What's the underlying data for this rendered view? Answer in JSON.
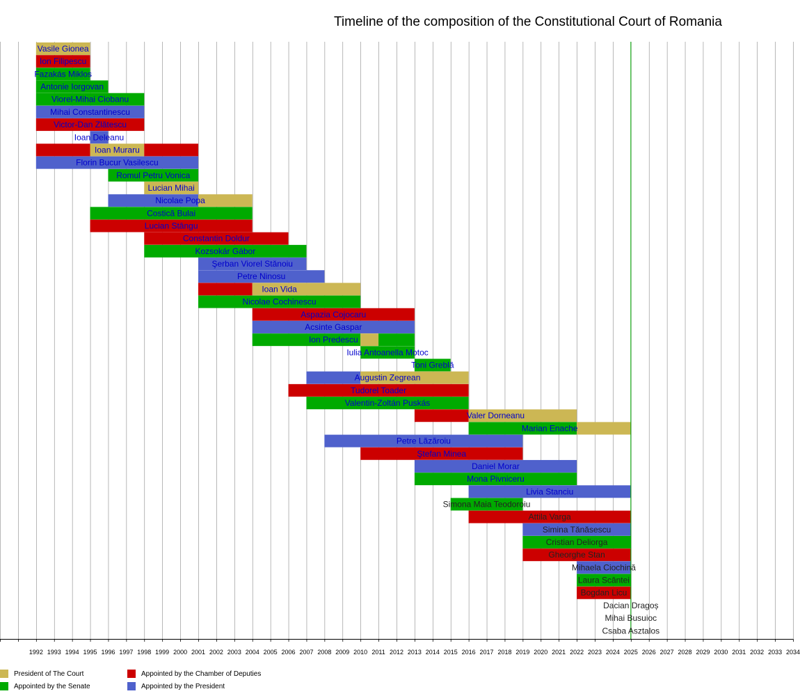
{
  "title": "Timeline of the composition of the Constitutional Court of Romania",
  "colors": {
    "president_of_court": "#CCB754",
    "chamber": "#CC0000",
    "senate": "#00AA00",
    "president": "#4F61CC",
    "label_appointed": "#0000CC",
    "label_pending": "#222222",
    "grid": "#888888",
    "today": "#00AA00"
  },
  "legend": [
    {
      "key": "president_of_court",
      "label": "President of The Court"
    },
    {
      "key": "senate",
      "label": "Appointed by the Senate"
    },
    {
      "key": "chamber",
      "label": "Appointed by the Chamber of Deputies"
    },
    {
      "key": "president",
      "label": "Appointed by the President"
    }
  ],
  "chart_data": {
    "type": "timeline",
    "title": "Timeline of the composition of the Constitutional Court of Romania",
    "x_axis": {
      "min": 1990,
      "max": 2034,
      "tick_labels": [
        "1992",
        "1993",
        "1994",
        "1995",
        "1996",
        "1997",
        "1998",
        "1999",
        "2000",
        "2001",
        "2002",
        "2003",
        "2004",
        "2005",
        "2006",
        "2007",
        "2008",
        "2009",
        "2010",
        "2011",
        "2012",
        "2013",
        "2014",
        "2015",
        "2016",
        "2017",
        "2018",
        "2019",
        "2020",
        "2021",
        "2022",
        "2023",
        "2024",
        "2025",
        "2026",
        "2027",
        "2028",
        "2029",
        "2030",
        "2031",
        "2032",
        "2033",
        "2034"
      ]
    },
    "today_line": 2025,
    "members": [
      {
        "name": "Vasile Gionea",
        "periods": [
          {
            "start": 1992,
            "end": 1995,
            "type": "president_of_court"
          }
        ]
      },
      {
        "name": "Ion Filipescu",
        "periods": [
          {
            "start": 1992,
            "end": 1995,
            "type": "chamber"
          }
        ]
      },
      {
        "name": "Fazakás Miklos",
        "periods": [
          {
            "start": 1992,
            "end": 1995,
            "type": "senate"
          }
        ]
      },
      {
        "name": "Antonie Iorgovan",
        "periods": [
          {
            "start": 1992,
            "end": 1996,
            "type": "senate"
          }
        ]
      },
      {
        "name": "Viorel-Mihai Ciobanu",
        "periods": [
          {
            "start": 1992,
            "end": 1998,
            "type": "senate"
          }
        ]
      },
      {
        "name": "Mihai Constantinescu",
        "periods": [
          {
            "start": 1992,
            "end": 1998,
            "type": "president"
          }
        ]
      },
      {
        "name": "Victor-Dan Zlătescu",
        "periods": [
          {
            "start": 1992,
            "end": 1998,
            "type": "chamber"
          }
        ]
      },
      {
        "name": "Ioan Deleanu",
        "periods": [
          {
            "start": 1995,
            "end": 1996,
            "type": "president"
          }
        ]
      },
      {
        "name": "Ioan Muraru",
        "periods": [
          {
            "start": 1992,
            "end": 1995,
            "type": "chamber"
          },
          {
            "start": 1995,
            "end": 1998,
            "type": "president_of_court"
          },
          {
            "start": 1998,
            "end": 2001,
            "type": "chamber"
          }
        ]
      },
      {
        "name": "Florin Bucur Vasilescu",
        "periods": [
          {
            "start": 1992,
            "end": 2001,
            "type": "president"
          }
        ]
      },
      {
        "name": "Romul Petru Vonica",
        "periods": [
          {
            "start": 1996,
            "end": 2001,
            "type": "senate"
          }
        ]
      },
      {
        "name": "Lucian Mihai",
        "periods": [
          {
            "start": 1998,
            "end": 2001,
            "type": "president_of_court"
          }
        ]
      },
      {
        "name": "Nicolae Popa",
        "periods": [
          {
            "start": 1996,
            "end": 2001,
            "type": "president"
          },
          {
            "start": 2001,
            "end": 2004,
            "type": "president_of_court"
          }
        ]
      },
      {
        "name": "Costică Bulai",
        "periods": [
          {
            "start": 1995,
            "end": 2004,
            "type": "senate"
          }
        ]
      },
      {
        "name": "Lucian Stângu",
        "periods": [
          {
            "start": 1995,
            "end": 2004,
            "type": "chamber"
          }
        ]
      },
      {
        "name": "Constantin Doldur",
        "periods": [
          {
            "start": 1998,
            "end": 2006,
            "type": "chamber"
          }
        ]
      },
      {
        "name": "Kozsokár Gábor",
        "periods": [
          {
            "start": 1998,
            "end": 2007,
            "type": "senate"
          }
        ]
      },
      {
        "name": "Şerban Viorel Stănoiu",
        "periods": [
          {
            "start": 2001,
            "end": 2007,
            "type": "president"
          }
        ]
      },
      {
        "name": "Petre Ninosu",
        "periods": [
          {
            "start": 2001,
            "end": 2008,
            "type": "president"
          }
        ]
      },
      {
        "name": "Ioan Vida",
        "periods": [
          {
            "start": 2001,
            "end": 2004,
            "type": "chamber"
          },
          {
            "start": 2004,
            "end": 2010,
            "type": "president_of_court"
          }
        ]
      },
      {
        "name": "Nicolae Cochinescu",
        "periods": [
          {
            "start": 2001,
            "end": 2010,
            "type": "senate"
          }
        ]
      },
      {
        "name": "Aspazia Cojocaru",
        "periods": [
          {
            "start": 2004,
            "end": 2013,
            "type": "chamber"
          }
        ]
      },
      {
        "name": "Acsinte Gaspar",
        "periods": [
          {
            "start": 2004,
            "end": 2013,
            "type": "president"
          }
        ]
      },
      {
        "name": "Ion Predescu",
        "periods": [
          {
            "start": 2004,
            "end": 2010,
            "type": "senate"
          },
          {
            "start": 2010,
            "end": 2011,
            "type": "president_of_court"
          },
          {
            "start": 2011,
            "end": 2013,
            "type": "senate"
          }
        ]
      },
      {
        "name": "Iulia Antoanella Motoc",
        "periods": [
          {
            "start": 2010,
            "end": 2013,
            "type": "senate"
          }
        ]
      },
      {
        "name": "Toni Greblă",
        "periods": [
          {
            "start": 2013,
            "end": 2015,
            "type": "senate"
          }
        ]
      },
      {
        "name": "Augustin Zegrean",
        "periods": [
          {
            "start": 2007,
            "end": 2010,
            "type": "president"
          },
          {
            "start": 2010,
            "end": 2016,
            "type": "president_of_court"
          }
        ]
      },
      {
        "name": "Tudorel Toader",
        "periods": [
          {
            "start": 2006,
            "end": 2016,
            "type": "chamber"
          }
        ]
      },
      {
        "name": "Valentin-Zoltán Puskás",
        "periods": [
          {
            "start": 2007,
            "end": 2016,
            "type": "senate"
          }
        ]
      },
      {
        "name": "Valer Dorneanu",
        "periods": [
          {
            "start": 2013,
            "end": 2016,
            "type": "chamber"
          },
          {
            "start": 2016,
            "end": 2022,
            "type": "president_of_court"
          }
        ]
      },
      {
        "name": "Marian Enache",
        "periods": [
          {
            "start": 2016,
            "end": 2022,
            "type": "senate"
          },
          {
            "start": 2022,
            "end": 2025,
            "type": "president_of_court"
          }
        ]
      },
      {
        "name": "Petre Lăzăroiu",
        "periods": [
          {
            "start": 2008,
            "end": 2019,
            "type": "president"
          }
        ]
      },
      {
        "name": "Ştefan Minea",
        "periods": [
          {
            "start": 2010,
            "end": 2019,
            "type": "chamber"
          }
        ]
      },
      {
        "name": "Daniel Morar",
        "periods": [
          {
            "start": 2013,
            "end": 2022,
            "type": "president"
          }
        ]
      },
      {
        "name": "Mona Pivniceru",
        "periods": [
          {
            "start": 2013,
            "end": 2022,
            "type": "senate"
          }
        ]
      },
      {
        "name": "Livia Stanciu",
        "periods": [
          {
            "start": 2016,
            "end": 2025,
            "type": "president"
          }
        ]
      },
      {
        "name": "Simona Maia Teodoroiu",
        "periods": [
          {
            "start": 2015,
            "end": 2019,
            "type": "senate"
          }
        ]
      },
      {
        "name": "Attila Varga",
        "periods": [
          {
            "start": 2016,
            "end": 2025,
            "type": "chamber"
          }
        ]
      },
      {
        "name": "Simina Tănăsescu",
        "periods": [
          {
            "start": 2019,
            "end": 2025,
            "type": "president"
          }
        ]
      },
      {
        "name": "Cristian Deliorga",
        "periods": [
          {
            "start": 2019,
            "end": 2025,
            "type": "senate"
          }
        ]
      },
      {
        "name": "Gheorghe Stan",
        "periods": [
          {
            "start": 2019,
            "end": 2025,
            "type": "chamber"
          }
        ]
      },
      {
        "name": "Mihaela Ciochină",
        "periods": [
          {
            "start": 2022,
            "end": 2025,
            "type": "president"
          }
        ]
      },
      {
        "name": "Laura Scântei",
        "periods": [
          {
            "start": 2022,
            "end": 2025,
            "type": "senate"
          }
        ]
      },
      {
        "name": "Bogdan Licu",
        "periods": [
          {
            "start": 2022,
            "end": 2025,
            "type": "chamber"
          }
        ]
      },
      {
        "name": "Dacian Dragoș",
        "periods": []
      },
      {
        "name": "Mihai Busuioc",
        "periods": []
      },
      {
        "name": "Csaba Asztalos",
        "periods": []
      }
    ]
  }
}
